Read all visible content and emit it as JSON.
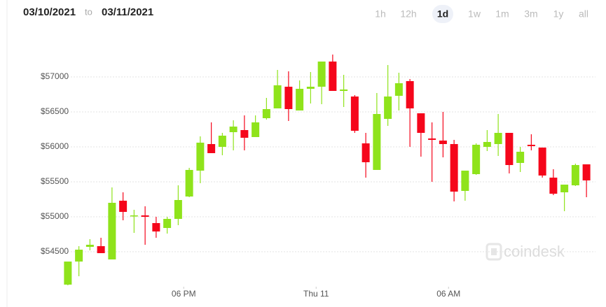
{
  "date_range": {
    "from": "03/10/2021",
    "separator": "to",
    "to": "03/11/2021"
  },
  "range_buttons": [
    {
      "label": "1h",
      "selected": false
    },
    {
      "label": "12h",
      "selected": false
    },
    {
      "label": "1d",
      "selected": true
    },
    {
      "label": "1w",
      "selected": false
    },
    {
      "label": "1m",
      "selected": false
    },
    {
      "label": "3m",
      "selected": false
    },
    {
      "label": "1y",
      "selected": false
    },
    {
      "label": "all",
      "selected": false
    }
  ],
  "chart_data": {
    "type": "candlestick",
    "watermark": "coindesk",
    "up_color": "#8fe31b",
    "down_color": "#f5061b",
    "categories": [
      null,
      null,
      null,
      null,
      null,
      null,
      null,
      null,
      null,
      null,
      null,
      null,
      null,
      null,
      null,
      null,
      null,
      null,
      null,
      null,
      null,
      null,
      null,
      null,
      null,
      null,
      null,
      null,
      null,
      null,
      null,
      null,
      null,
      null,
      null,
      null,
      null,
      null,
      null,
      null,
      null,
      null,
      null,
      null,
      null,
      null,
      null,
      null
    ],
    "open": [
      54030,
      54360,
      54570,
      54580,
      54390,
      55230,
      55010,
      55020,
      54910,
      54840,
      54970,
      55290,
      55660,
      56040,
      56000,
      56210,
      56240,
      56140,
      56410,
      56550,
      56860,
      56520,
      56830,
      56860,
      57220,
      56800,
      56720,
      56050,
      55670,
      56400,
      56730,
      56940,
      56480,
      56120,
      56090,
      56040,
      55370,
      55610,
      56000,
      56040,
      56200,
      55770,
      56030,
      55990,
      55560,
      55350,
      55450,
      55750
    ],
    "high": [
      54360,
      54580,
      54680,
      54700,
      55420,
      55350,
      55100,
      55150,
      55000,
      55000,
      55450,
      55700,
      56150,
      56350,
      56200,
      56380,
      56450,
      56450,
      56700,
      57100,
      57080,
      56950,
      57070,
      57220,
      57320,
      57030,
      56740,
      56200,
      56770,
      57170,
      57060,
      56970,
      56480,
      56350,
      56500,
      56100,
      55660,
      56050,
      56240,
      56470,
      56200,
      56000,
      56180,
      55990,
      55680,
      55460,
      55760,
      55750
    ],
    "low": [
      54020,
      54150,
      54520,
      54480,
      54390,
      54950,
      54770,
      54600,
      54700,
      54760,
      54880,
      55280,
      55480,
      55910,
      55880,
      55950,
      55950,
      56140,
      56390,
      56550,
      56370,
      56520,
      56620,
      56610,
      56800,
      56570,
      56200,
      55560,
      55670,
      56300,
      56520,
      56000,
      55860,
      55500,
      55850,
      55220,
      55230,
      55600,
      55940,
      55870,
      55620,
      55640,
      55950,
      55560,
      55310,
      55080,
      55440,
      55280
    ],
    "close": [
      54360,
      54530,
      54600,
      54480,
      55200,
      55070,
      55020,
      55000,
      54790,
      54970,
      55240,
      55670,
      56060,
      55910,
      56160,
      56290,
      56130,
      56350,
      56540,
      56880,
      56540,
      56830,
      56860,
      57220,
      56800,
      56820,
      56230,
      55780,
      56470,
      56720,
      56910,
      56550,
      56200,
      56100,
      56040,
      55360,
      55660,
      56030,
      56070,
      56200,
      55740,
      55930,
      56010,
      55590,
      55330,
      55460,
      55740,
      55520
    ],
    "ylim": [
      54000,
      57500
    ],
    "yticks": [
      {
        "value": 54500,
        "label": "$54500"
      },
      {
        "value": 55000,
        "label": "$55000"
      },
      {
        "value": 55500,
        "label": "$55500"
      },
      {
        "value": 56000,
        "label": "$56000"
      },
      {
        "value": 56500,
        "label": "$56500"
      },
      {
        "value": 57000,
        "label": "$57000"
      }
    ],
    "xticks": [
      {
        "value": 10.5,
        "label": "06 PM"
      },
      {
        "value": 22.5,
        "label": "Thu 11"
      },
      {
        "value": 34.5,
        "label": "06 AM"
      }
    ],
    "grid": true
  }
}
